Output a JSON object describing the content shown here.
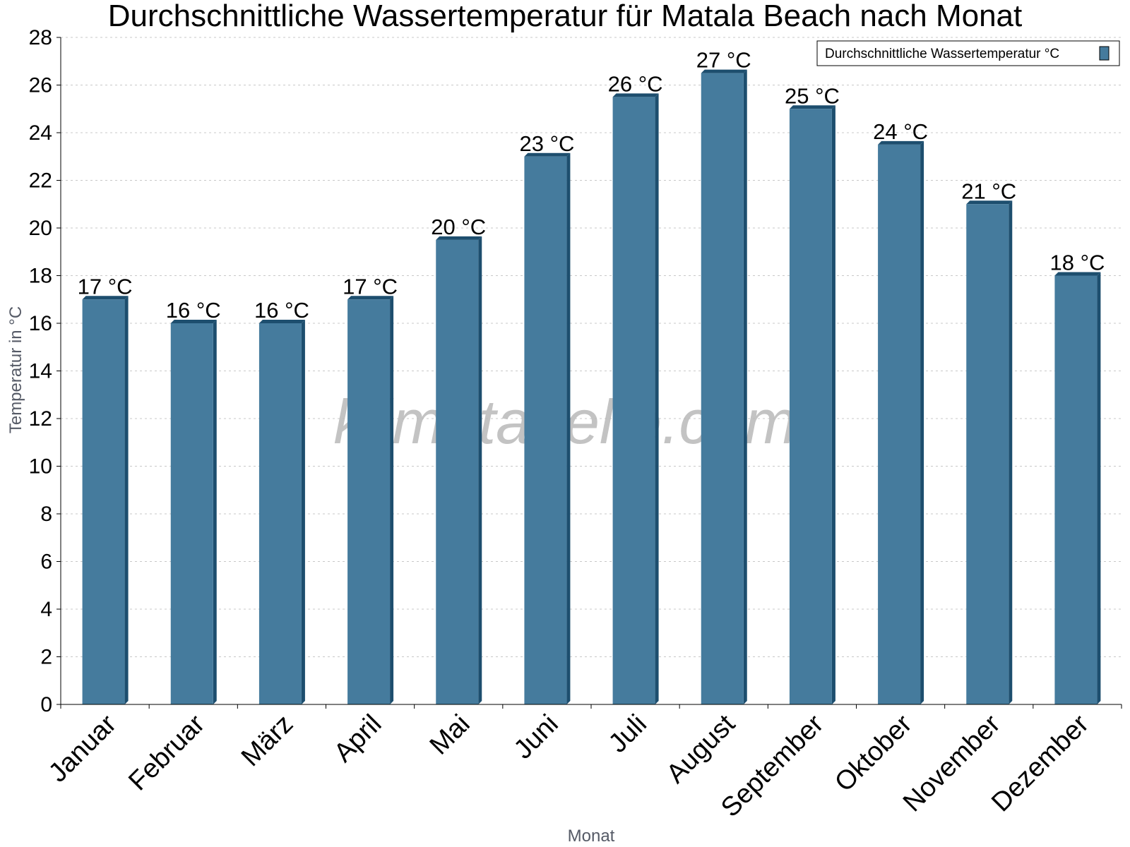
{
  "chart_data": {
    "type": "bar",
    "title": "Durchschnittliche Wassertemperatur für Matala Beach nach Monat",
    "xlabel": "Monat",
    "ylabel": "Temperatur in °C",
    "categories": [
      "Januar",
      "Februar",
      "März",
      "April",
      "Mai",
      "Juni",
      "Juli",
      "August",
      "September",
      "Oktober",
      "November",
      "Dezember"
    ],
    "series": [
      {
        "name": "Durchschnittliche Wassertemperatur °C",
        "values": [
          17,
          16,
          16,
          17,
          19.5,
          23,
          25.5,
          26.5,
          25,
          23.5,
          21,
          18
        ],
        "labels": [
          "17 °C",
          "16 °C",
          "16 °C",
          "17 °C",
          "20 °C",
          "23 °C",
          "26 °C",
          "27 °C",
          "25 °C",
          "24 °C",
          "21 °C",
          "18 °C"
        ],
        "color": "#457b9d"
      }
    ],
    "ylim": [
      0,
      28
    ],
    "yticks": [
      0,
      2,
      4,
      6,
      8,
      10,
      12,
      14,
      16,
      18,
      20,
      22,
      24,
      26,
      28
    ],
    "grid": true,
    "legend_position": "top-right",
    "watermark": "klimatabelle.com",
    "colors": {
      "bar": "#457b9d",
      "bar_edge": "#1d4e6e",
      "grid": "#c8c8c8",
      "axis_label": "#555a66"
    }
  }
}
